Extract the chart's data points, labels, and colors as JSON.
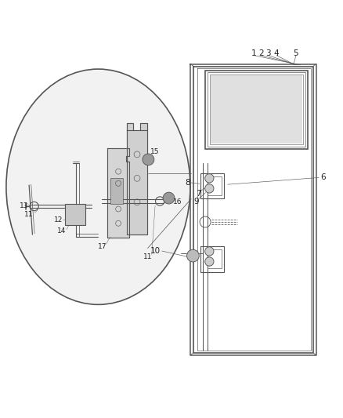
{
  "background_color": "#ffffff",
  "line_color": "#555555",
  "label_color": "#222222",
  "figsize": [
    4.38,
    5.33
  ],
  "dpi": 100
}
